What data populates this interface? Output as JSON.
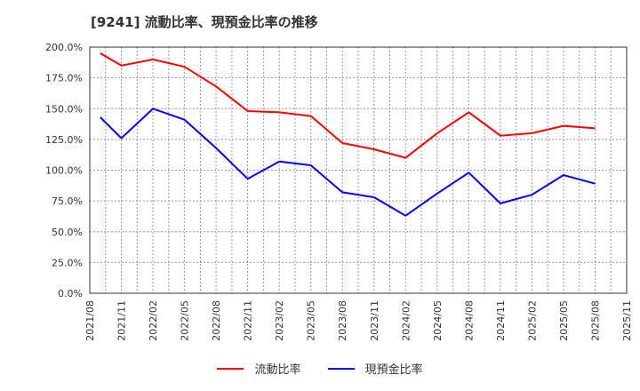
{
  "title": "[9241]  流動比率、現預金比率の推移",
  "legend": [
    {
      "label": "流動比率",
      "color": "#ff0000"
    },
    {
      "label": "現預金比率",
      "color": "#0000ff"
    }
  ],
  "chart_data": {
    "type": "line",
    "title": "[9241] 流動比率、現預金比率の推移",
    "xlabel": "",
    "ylabel": "",
    "ylim": [
      0,
      200
    ],
    "yticks": [
      "0.0%",
      "25.0%",
      "50.0%",
      "75.0%",
      "100.0%",
      "125.0%",
      "150.0%",
      "175.0%",
      "200.0%"
    ],
    "xticks": [
      "2021/08",
      "2021/11",
      "2022/02",
      "2022/05",
      "2022/08",
      "2022/11",
      "2023/02",
      "2023/05",
      "2023/08",
      "2023/11",
      "2024/02",
      "2024/05",
      "2024/08",
      "2024/11",
      "2025/02",
      "2025/05",
      "2025/08",
      "2025/11"
    ],
    "x": [
      "2021/09",
      "2021/11",
      "2022/02",
      "2022/05",
      "2022/08",
      "2022/11",
      "2023/02",
      "2023/05",
      "2023/08",
      "2023/11",
      "2024/02",
      "2024/05",
      "2024/08",
      "2024/11",
      "2025/02",
      "2025/05",
      "2025/08"
    ],
    "grid": true,
    "legend_position": "bottom",
    "series": [
      {
        "name": "流動比率",
        "color": "#ff0000",
        "values": [
          195,
          185,
          190,
          184,
          168,
          148,
          147,
          144,
          122,
          117,
          110,
          130,
          147,
          128,
          130,
          136,
          134
        ]
      },
      {
        "name": "現預金比率",
        "color": "#0000ff",
        "values": [
          143,
          126,
          150,
          141,
          118,
          93,
          107,
          104,
          82,
          78,
          63,
          81,
          98,
          73,
          80,
          96,
          89
        ]
      }
    ]
  }
}
